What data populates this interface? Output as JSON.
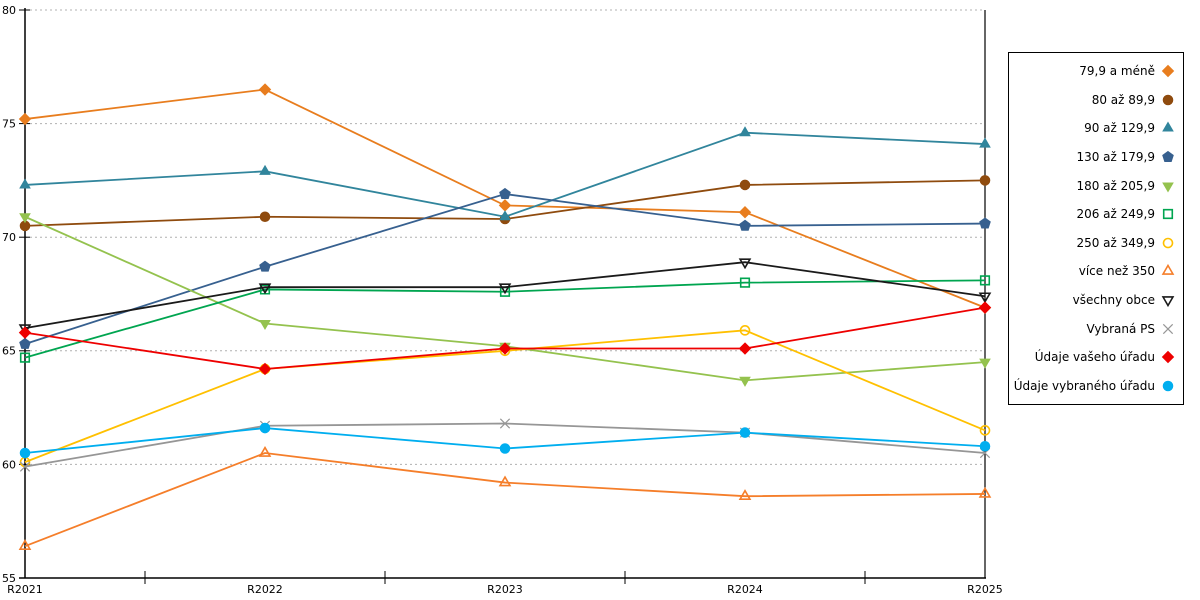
{
  "chart_data": {
    "type": "line",
    "title": "",
    "xlabel": "",
    "ylabel": "",
    "categories": [
      "R2021",
      "R2022",
      "R2023",
      "R2024",
      "R2025"
    ],
    "ylim": [
      55,
      80
    ],
    "ytick_step": 5,
    "y_tick_labels": [
      "55",
      "60",
      "65",
      "70",
      "75",
      "80"
    ],
    "grid": "horizontal-dotted",
    "legend_position": "right",
    "series": [
      {
        "name": "79,9 a méně",
        "marker": "diamond",
        "fill": "solid",
        "color": "#E87D1E",
        "values": [
          75.2,
          76.5,
          71.4,
          71.1,
          66.9
        ]
      },
      {
        "name": "80 až 89,9",
        "marker": "circle",
        "fill": "solid",
        "color": "#8F4B0E",
        "values": [
          70.5,
          70.9,
          70.8,
          72.3,
          72.5
        ]
      },
      {
        "name": "90 až 129,9",
        "marker": "triangle-up",
        "fill": "solid",
        "color": "#31859C",
        "values": [
          72.3,
          72.9,
          70.9,
          74.6,
          74.1
        ]
      },
      {
        "name": "130 až 179,9",
        "marker": "pentagon",
        "fill": "solid",
        "color": "#37608F",
        "values": [
          65.3,
          68.7,
          71.9,
          70.5,
          70.6
        ]
      },
      {
        "name": "180 až 205,9",
        "marker": "triangle-down",
        "fill": "solid",
        "color": "#94C24E",
        "values": [
          70.9,
          66.2,
          65.2,
          63.7,
          64.5
        ]
      },
      {
        "name": "206 až 249,9",
        "marker": "square",
        "fill": "open",
        "color": "#00A550",
        "values": [
          64.7,
          67.7,
          67.6,
          68.0,
          68.1
        ]
      },
      {
        "name": "250 až 349,9",
        "marker": "circle",
        "fill": "open",
        "color": "#FFC000",
        "values": [
          60.1,
          64.2,
          65.0,
          65.9,
          61.5
        ]
      },
      {
        "name": "více než 350",
        "marker": "triangle-up",
        "fill": "open",
        "color": "#F57E2A",
        "values": [
          56.4,
          60.5,
          59.2,
          58.6,
          58.7
        ]
      },
      {
        "name": "všechny obce",
        "marker": "triangle-down",
        "fill": "open",
        "color": "#1A1A1A",
        "values": [
          66.0,
          67.8,
          67.8,
          68.9,
          67.4
        ]
      },
      {
        "name": "Vybraná PS",
        "marker": "x",
        "fill": "line",
        "color": "#969696",
        "values": [
          59.9,
          61.7,
          61.8,
          61.4,
          60.5
        ]
      },
      {
        "name": "Údaje vašeho úřadu",
        "marker": "diamond",
        "fill": "solid",
        "color": "#EE0000",
        "values": [
          65.8,
          64.2,
          65.1,
          65.1,
          66.9
        ]
      },
      {
        "name": "Údaje vybraného úřadu",
        "marker": "circle",
        "fill": "solid",
        "color": "#00AEEF",
        "values": [
          60.5,
          61.6,
          60.7,
          61.4,
          60.8
        ]
      }
    ]
  },
  "colors": {
    "gridline": "#b0b0b0",
    "axis": "#000000",
    "background": "#ffffff"
  }
}
